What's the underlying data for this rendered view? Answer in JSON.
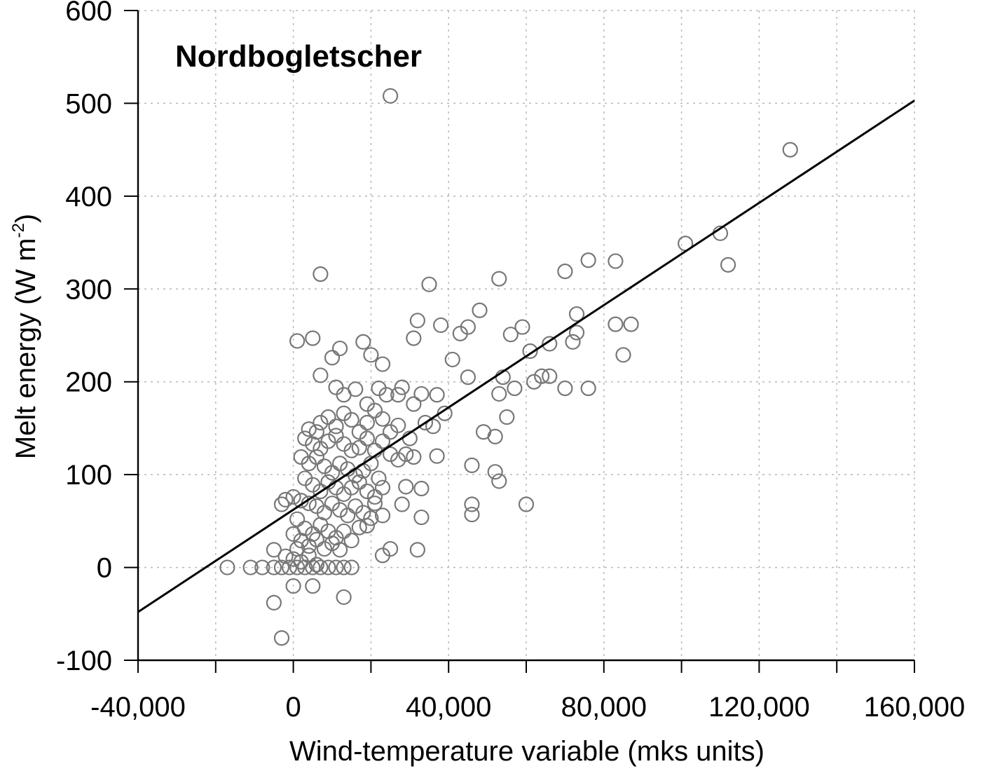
{
  "chart_data": {
    "type": "scatter",
    "title": "Nordbogletscher",
    "xlabel": "Wind-temperature variable (mks units)",
    "ylabel_main": "Melt energy (W m",
    "ylabel_sup": "-2",
    "ylabel_close": ")",
    "xlim": [
      -40000,
      160000
    ],
    "ylim": [
      -100,
      600
    ],
    "x_ticks": [
      -40000,
      -20000,
      0,
      20000,
      40000,
      60000,
      80000,
      100000,
      120000,
      140000,
      160000
    ],
    "x_tick_labels": [
      {
        "value": -40000,
        "label": "-40,000"
      },
      {
        "value": 0,
        "label": "0"
      },
      {
        "value": 40000,
        "label": "40,000"
      },
      {
        "value": 80000,
        "label": "80,000"
      },
      {
        "value": 120000,
        "label": "120,000"
      },
      {
        "value": 160000,
        "label": "160,000"
      }
    ],
    "y_ticks": [
      -100,
      0,
      100,
      200,
      300,
      400,
      500,
      600
    ],
    "y_tick_labels": [
      {
        "value": -100,
        "label": "-100"
      },
      {
        "value": 0,
        "label": "0"
      },
      {
        "value": 100,
        "label": "100"
      },
      {
        "value": 200,
        "label": "200"
      },
      {
        "value": 300,
        "label": "300"
      },
      {
        "value": 400,
        "label": "400"
      },
      {
        "value": 500,
        "label": "500"
      },
      {
        "value": 600,
        "label": "600"
      }
    ],
    "grid": true,
    "fit_line": {
      "x": [
        -40000,
        160000
      ],
      "y": [
        -48,
        503
      ]
    },
    "points": [
      [
        25000,
        508
      ],
      [
        128000,
        450
      ],
      [
        7000,
        316
      ],
      [
        35000,
        305
      ],
      [
        53000,
        311
      ],
      [
        70000,
        319
      ],
      [
        76000,
        331
      ],
      [
        83000,
        330
      ],
      [
        101000,
        349
      ],
      [
        110000,
        360
      ],
      [
        112000,
        326
      ],
      [
        32000,
        266
      ],
      [
        31000,
        247
      ],
      [
        38000,
        261
      ],
      [
        43000,
        252
      ],
      [
        45000,
        259
      ],
      [
        48000,
        277
      ],
      [
        56000,
        251
      ],
      [
        59000,
        259
      ],
      [
        61000,
        233
      ],
      [
        66000,
        241
      ],
      [
        72000,
        243
      ],
      [
        73000,
        253
      ],
      [
        73000,
        273
      ],
      [
        83000,
        262
      ],
      [
        87000,
        262
      ],
      [
        85000,
        229
      ],
      [
        62000,
        200
      ],
      [
        64000,
        206
      ],
      [
        66000,
        206
      ],
      [
        70000,
        193
      ],
      [
        76000,
        193
      ],
      [
        57000,
        193
      ],
      [
        53000,
        187
      ],
      [
        54000,
        205
      ],
      [
        45000,
        205
      ],
      [
        41000,
        224
      ],
      [
        5000,
        247
      ],
      [
        1000,
        244
      ],
      [
        12000,
        236
      ],
      [
        10000,
        226
      ],
      [
        7000,
        207
      ],
      [
        18000,
        243
      ],
      [
        20000,
        229
      ],
      [
        23000,
        219
      ],
      [
        11000,
        194
      ],
      [
        13000,
        186
      ],
      [
        16000,
        192
      ],
      [
        19000,
        176
      ],
      [
        22000,
        193
      ],
      [
        24000,
        186
      ],
      [
        27000,
        186
      ],
      [
        28000,
        194
      ],
      [
        31000,
        176
      ],
      [
        33000,
        187
      ],
      [
        37000,
        186
      ],
      [
        39000,
        166
      ],
      [
        36000,
        152
      ],
      [
        34000,
        156
      ],
      [
        30000,
        139
      ],
      [
        27000,
        153
      ],
      [
        25000,
        146
      ],
      [
        23000,
        160
      ],
      [
        21000,
        169
      ],
      [
        19000,
        156
      ],
      [
        17000,
        146
      ],
      [
        15000,
        159
      ],
      [
        13000,
        166
      ],
      [
        11000,
        152
      ],
      [
        9000,
        162
      ],
      [
        7000,
        156
      ],
      [
        6000,
        146
      ],
      [
        4000,
        149
      ],
      [
        3000,
        139
      ],
      [
        5000,
        133
      ],
      [
        7000,
        128
      ],
      [
        9000,
        136
      ],
      [
        11000,
        142
      ],
      [
        13000,
        133
      ],
      [
        15000,
        126
      ],
      [
        17000,
        129
      ],
      [
        19000,
        139
      ],
      [
        21000,
        126
      ],
      [
        23000,
        136
      ],
      [
        25000,
        122
      ],
      [
        27000,
        116
      ],
      [
        29000,
        122
      ],
      [
        31000,
        119
      ],
      [
        37000,
        120
      ],
      [
        49000,
        146
      ],
      [
        52000,
        141
      ],
      [
        55000,
        162
      ],
      [
        2000,
        119
      ],
      [
        4000,
        112
      ],
      [
        6000,
        119
      ],
      [
        8000,
        109
      ],
      [
        10000,
        102
      ],
      [
        12000,
        112
      ],
      [
        14000,
        106
      ],
      [
        16000,
        99
      ],
      [
        18000,
        104
      ],
      [
        20000,
        112
      ],
      [
        22000,
        96
      ],
      [
        3000,
        96
      ],
      [
        5000,
        89
      ],
      [
        7000,
        82
      ],
      [
        9000,
        92
      ],
      [
        11000,
        86
      ],
      [
        13000,
        79
      ],
      [
        15000,
        86
      ],
      [
        17000,
        92
      ],
      [
        19000,
        82
      ],
      [
        21000,
        76
      ],
      [
        23000,
        86
      ],
      [
        29000,
        87
      ],
      [
        33000,
        85
      ],
      [
        46000,
        110
      ],
      [
        52000,
        103
      ],
      [
        53000,
        93
      ],
      [
        0,
        76
      ],
      [
        2000,
        72
      ],
      [
        4000,
        69
      ],
      [
        6000,
        66
      ],
      [
        8000,
        59
      ],
      [
        10000,
        69
      ],
      [
        12000,
        62
      ],
      [
        14000,
        56
      ],
      [
        16000,
        66
      ],
      [
        18000,
        59
      ],
      [
        20000,
        53
      ],
      [
        21000,
        69
      ],
      [
        23000,
        56
      ],
      [
        28000,
        68
      ],
      [
        33000,
        54
      ],
      [
        46000,
        68
      ],
      [
        46000,
        57
      ],
      [
        60000,
        68
      ],
      [
        -2000,
        73
      ],
      [
        -3000,
        68
      ],
      [
        1000,
        52
      ],
      [
        3000,
        42
      ],
      [
        5000,
        36
      ],
      [
        7000,
        46
      ],
      [
        9000,
        39
      ],
      [
        11000,
        32
      ],
      [
        13000,
        39
      ],
      [
        15000,
        29
      ],
      [
        17000,
        43
      ],
      [
        19000,
        45
      ],
      [
        0,
        36
      ],
      [
        2000,
        29
      ],
      [
        4000,
        23
      ],
      [
        6000,
        30
      ],
      [
        8000,
        20
      ],
      [
        10000,
        26
      ],
      [
        12000,
        19
      ],
      [
        -5000,
        19
      ],
      [
        -2000,
        12
      ],
      [
        0,
        9
      ],
      [
        2000,
        6
      ],
      [
        4000,
        13
      ],
      [
        6000,
        3
      ],
      [
        25000,
        20
      ],
      [
        23000,
        13
      ],
      [
        32000,
        19
      ],
      [
        -17000,
        0
      ],
      [
        -11000,
        0
      ],
      [
        -8000,
        0
      ],
      [
        -5000,
        0
      ],
      [
        -3000,
        0
      ],
      [
        -1000,
        0
      ],
      [
        1000,
        0
      ],
      [
        3000,
        0
      ],
      [
        5000,
        0
      ],
      [
        7000,
        0
      ],
      [
        9000,
        0
      ],
      [
        11000,
        0
      ],
      [
        13000,
        0
      ],
      [
        15000,
        0
      ],
      [
        0,
        -20
      ],
      [
        5000,
        -20
      ],
      [
        13000,
        -32
      ],
      [
        -5000,
        -38
      ],
      [
        -3000,
        -76
      ],
      [
        1000,
        20
      ]
    ]
  }
}
